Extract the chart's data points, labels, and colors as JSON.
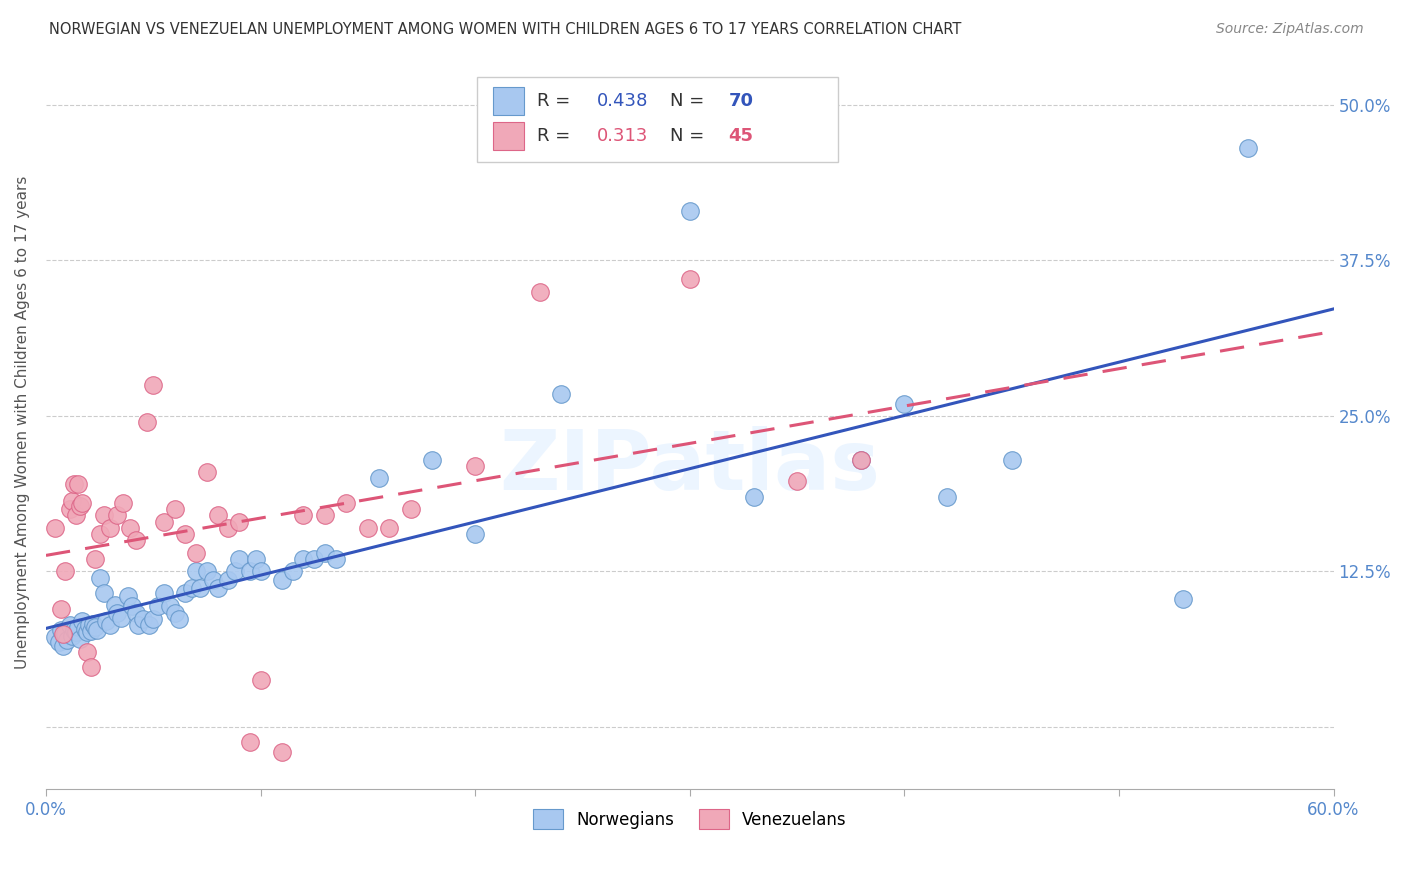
{
  "title": "NORWEGIAN VS VENEZUELAN UNEMPLOYMENT AMONG WOMEN WITH CHILDREN AGES 6 TO 17 YEARS CORRELATION CHART",
  "source": "Source: ZipAtlas.com",
  "ylabel_label": "Unemployment Among Women with Children Ages 6 to 17 years",
  "xlim": [
    0.0,
    0.6
  ],
  "ylim": [
    -0.05,
    0.54
  ],
  "xticks": [
    0.0,
    0.1,
    0.2,
    0.3,
    0.4,
    0.5,
    0.6
  ],
  "xticklabels_show": [
    "0.0%",
    "",
    "",
    "",
    "",
    "",
    "60.0%"
  ],
  "yticks": [
    0.0,
    0.125,
    0.25,
    0.375,
    0.5
  ],
  "yticklabels": [
    "",
    "12.5%",
    "25.0%",
    "37.5%",
    "50.0%"
  ],
  "norwegian_color": "#a8c8f0",
  "norwegian_edge_color": "#6699cc",
  "venezuelan_color": "#f0a8b8",
  "venezuelan_edge_color": "#dd6688",
  "norwegian_line_color": "#3355bb",
  "venezuelan_line_color": "#dd5577",
  "tick_label_color": "#5588cc",
  "R_norwegian": "0.438",
  "N_norwegian": "70",
  "R_venezuelan": "0.313",
  "N_venezuelan": "45",
  "watermark": "ZIPatlas",
  "legend_labels": [
    "Norwegians",
    "Venezuelans"
  ],
  "norwegian_points": [
    [
      0.004,
      0.072
    ],
    [
      0.006,
      0.068
    ],
    [
      0.007,
      0.078
    ],
    [
      0.008,
      0.065
    ],
    [
      0.009,
      0.075
    ],
    [
      0.01,
      0.07
    ],
    [
      0.011,
      0.082
    ],
    [
      0.012,
      0.073
    ],
    [
      0.013,
      0.078
    ],
    [
      0.014,
      0.076
    ],
    [
      0.015,
      0.08
    ],
    [
      0.016,
      0.071
    ],
    [
      0.017,
      0.085
    ],
    [
      0.018,
      0.079
    ],
    [
      0.019,
      0.076
    ],
    [
      0.02,
      0.082
    ],
    [
      0.021,
      0.077
    ],
    [
      0.022,
      0.083
    ],
    [
      0.023,
      0.08
    ],
    [
      0.024,
      0.078
    ],
    [
      0.025,
      0.12
    ],
    [
      0.027,
      0.108
    ],
    [
      0.028,
      0.085
    ],
    [
      0.03,
      0.082
    ],
    [
      0.032,
      0.098
    ],
    [
      0.033,
      0.092
    ],
    [
      0.035,
      0.088
    ],
    [
      0.038,
      0.105
    ],
    [
      0.04,
      0.097
    ],
    [
      0.042,
      0.092
    ],
    [
      0.043,
      0.082
    ],
    [
      0.045,
      0.087
    ],
    [
      0.048,
      0.082
    ],
    [
      0.05,
      0.087
    ],
    [
      0.052,
      0.097
    ],
    [
      0.055,
      0.108
    ],
    [
      0.058,
      0.097
    ],
    [
      0.06,
      0.092
    ],
    [
      0.062,
      0.087
    ],
    [
      0.065,
      0.108
    ],
    [
      0.068,
      0.112
    ],
    [
      0.07,
      0.125
    ],
    [
      0.072,
      0.112
    ],
    [
      0.075,
      0.125
    ],
    [
      0.078,
      0.118
    ],
    [
      0.08,
      0.112
    ],
    [
      0.085,
      0.118
    ],
    [
      0.088,
      0.125
    ],
    [
      0.09,
      0.135
    ],
    [
      0.095,
      0.125
    ],
    [
      0.098,
      0.135
    ],
    [
      0.1,
      0.125
    ],
    [
      0.11,
      0.118
    ],
    [
      0.115,
      0.125
    ],
    [
      0.12,
      0.135
    ],
    [
      0.125,
      0.135
    ],
    [
      0.13,
      0.14
    ],
    [
      0.135,
      0.135
    ],
    [
      0.155,
      0.2
    ],
    [
      0.18,
      0.215
    ],
    [
      0.2,
      0.155
    ],
    [
      0.24,
      0.268
    ],
    [
      0.3,
      0.415
    ],
    [
      0.33,
      0.185
    ],
    [
      0.38,
      0.215
    ],
    [
      0.4,
      0.26
    ],
    [
      0.42,
      0.185
    ],
    [
      0.45,
      0.215
    ],
    [
      0.53,
      0.103
    ],
    [
      0.56,
      0.465
    ]
  ],
  "venezuelan_points": [
    [
      0.004,
      0.16
    ],
    [
      0.007,
      0.095
    ],
    [
      0.008,
      0.075
    ],
    [
      0.009,
      0.125
    ],
    [
      0.011,
      0.175
    ],
    [
      0.012,
      0.182
    ],
    [
      0.013,
      0.195
    ],
    [
      0.014,
      0.17
    ],
    [
      0.015,
      0.195
    ],
    [
      0.016,
      0.178
    ],
    [
      0.017,
      0.18
    ],
    [
      0.019,
      0.06
    ],
    [
      0.021,
      0.048
    ],
    [
      0.023,
      0.135
    ],
    [
      0.025,
      0.155
    ],
    [
      0.027,
      0.17
    ],
    [
      0.03,
      0.16
    ],
    [
      0.033,
      0.17
    ],
    [
      0.036,
      0.18
    ],
    [
      0.039,
      0.16
    ],
    [
      0.042,
      0.15
    ],
    [
      0.047,
      0.245
    ],
    [
      0.05,
      0.275
    ],
    [
      0.055,
      0.165
    ],
    [
      0.06,
      0.175
    ],
    [
      0.065,
      0.155
    ],
    [
      0.07,
      0.14
    ],
    [
      0.075,
      0.205
    ],
    [
      0.08,
      0.17
    ],
    [
      0.085,
      0.16
    ],
    [
      0.09,
      0.165
    ],
    [
      0.095,
      -0.012
    ],
    [
      0.1,
      0.038
    ],
    [
      0.11,
      -0.02
    ],
    [
      0.12,
      0.17
    ],
    [
      0.13,
      0.17
    ],
    [
      0.14,
      0.18
    ],
    [
      0.15,
      0.16
    ],
    [
      0.16,
      0.16
    ],
    [
      0.17,
      0.175
    ],
    [
      0.2,
      0.21
    ],
    [
      0.23,
      0.35
    ],
    [
      0.3,
      0.36
    ],
    [
      0.35,
      0.198
    ],
    [
      0.38,
      0.215
    ]
  ]
}
